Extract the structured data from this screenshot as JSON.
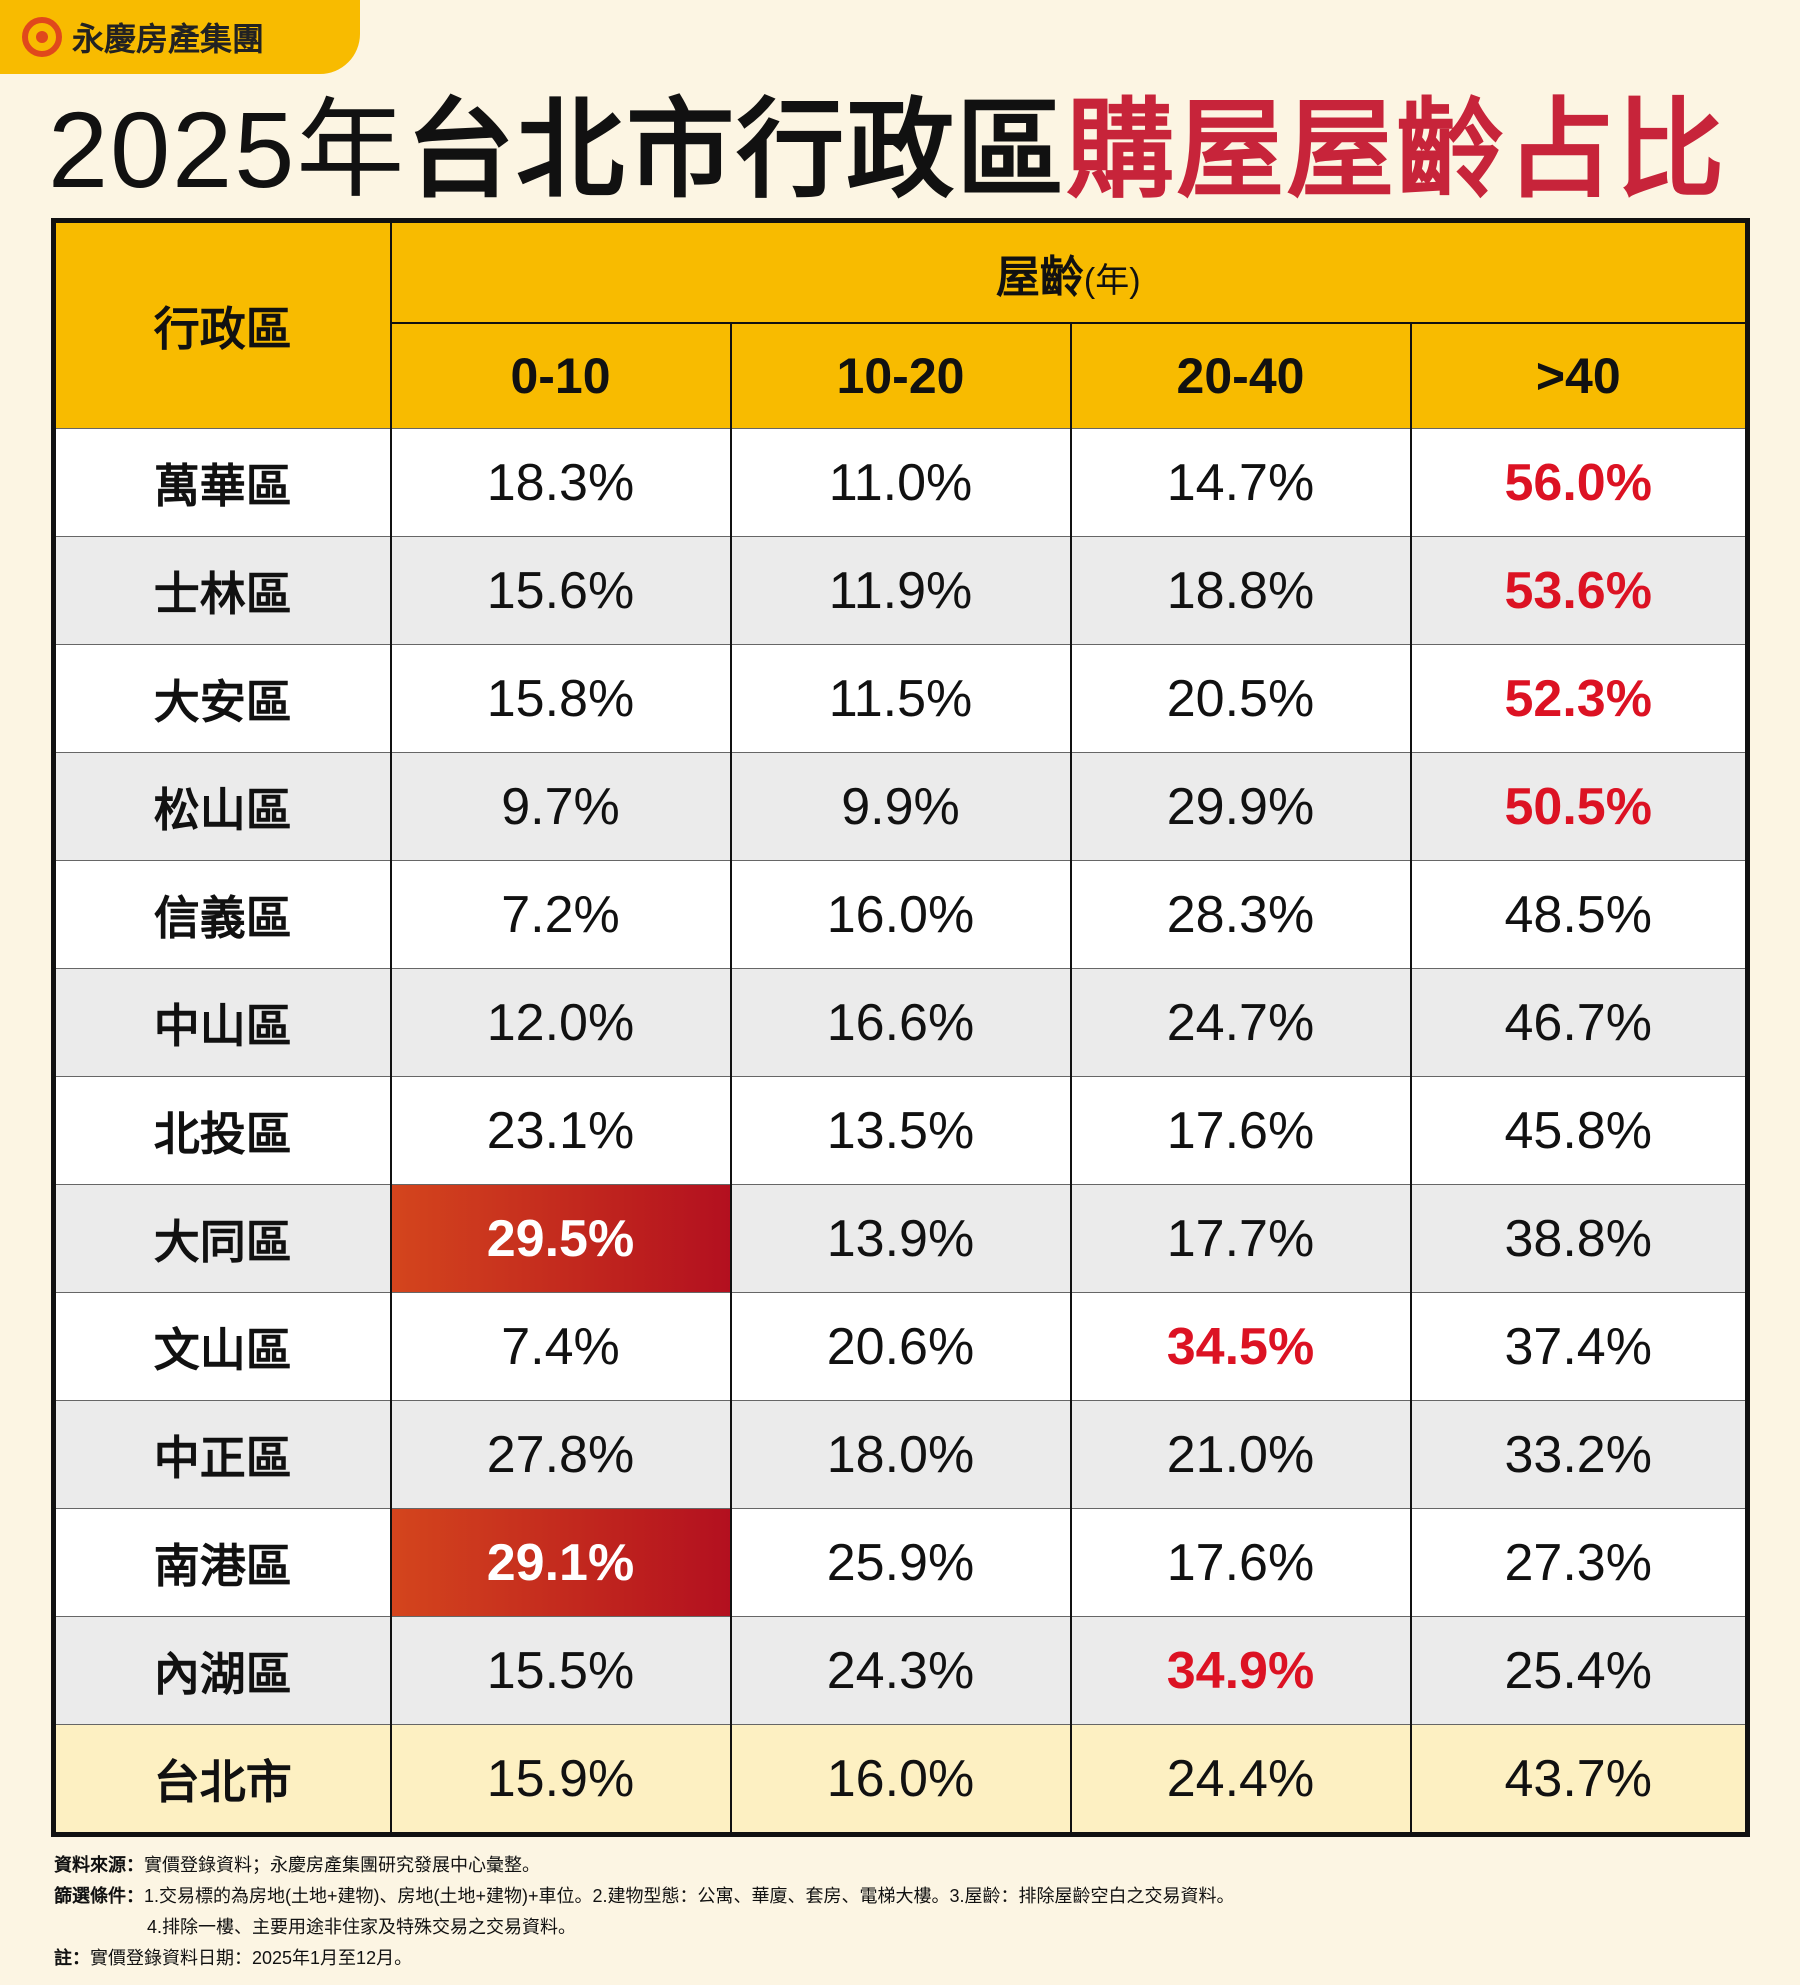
{
  "header": {
    "logo": "永慶房產集團"
  },
  "title": {
    "year": "2025年",
    "main": "台北市行政區",
    "highlight": "購屋屋齡占比"
  },
  "table": {
    "corner": "行政區",
    "group": "屋齡",
    "group_unit": "(年)",
    "columns": [
      "0-10",
      "10-20",
      "20-40",
      ">40"
    ],
    "rows": [
      [
        "萬華區",
        "18.3%",
        "11.0%",
        "14.7%",
        "56.0%"
      ],
      [
        "士林區",
        "15.6%",
        "11.9%",
        "18.8%",
        "53.6%"
      ],
      [
        "大安區",
        "15.8%",
        "11.5%",
        "20.5%",
        "52.3%"
      ],
      [
        "松山區",
        "9.7%",
        "9.9%",
        "29.9%",
        "50.5%"
      ],
      [
        "信義區",
        "7.2%",
        "16.0%",
        "28.3%",
        "48.5%"
      ],
      [
        "中山區",
        "12.0%",
        "16.6%",
        "24.7%",
        "46.7%"
      ],
      [
        "北投區",
        "23.1%",
        "13.5%",
        "17.6%",
        "45.8%"
      ],
      [
        "大同區",
        "29.5%",
        "13.9%",
        "17.7%",
        "38.8%"
      ],
      [
        "文山區",
        "7.4%",
        "20.6%",
        "34.5%",
        "37.4%"
      ],
      [
        "中正區",
        "27.8%",
        "18.0%",
        "21.0%",
        "33.2%"
      ],
      [
        "南港區",
        "29.1%",
        "25.9%",
        "17.6%",
        "27.3%"
      ],
      [
        "內湖區",
        "15.5%",
        "24.3%",
        "34.9%",
        "25.4%"
      ],
      [
        "台北市",
        "15.9%",
        "16.0%",
        "24.4%",
        "43.7%"
      ]
    ]
  },
  "notes": [
    {
      "label": "資料來源：",
      "lines": [
        "實價登錄資料；永慶房產集團研究發展中心彙整。"
      ]
    },
    {
      "label": "篩選條件：",
      "lines": [
        "1.交易標的為房地(土地+建物)、房地(土地+建物)+車位。2.建物型態：公寓、華廈、套房、電梯大樓。3.屋齡：排除屋齡空白之交易資料。",
        "4.排除一樓、主要用途非住家及特殊交易之交易資料。"
      ]
    },
    {
      "label": "註：",
      "lines": [
        "實價登錄資料日期：2025年1月至12月。"
      ]
    }
  ]
}
